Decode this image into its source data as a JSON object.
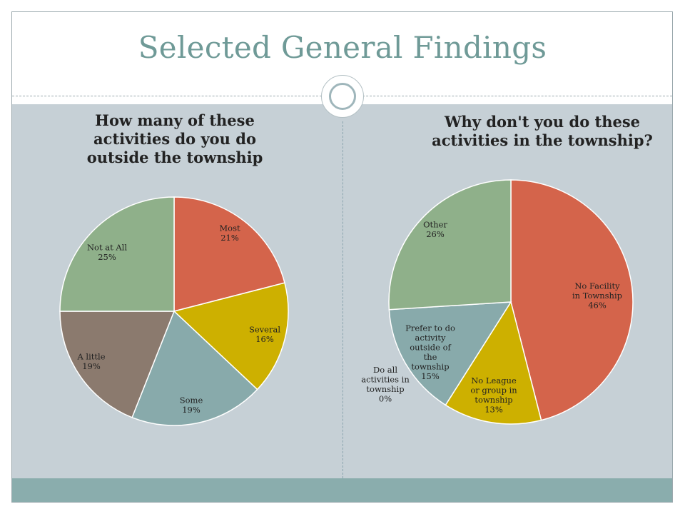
{
  "slide": {
    "title": "Selected General Findings"
  },
  "chart_data": [
    {
      "type": "pie",
      "title": "How many of these activities do you do outside the township",
      "slices": [
        {
          "label": "Most",
          "value": 21,
          "value_label": "21%",
          "color": "#d4644b"
        },
        {
          "label": "Several",
          "value": 16,
          "value_label": "16%",
          "color": "#cdb000"
        },
        {
          "label": "Some",
          "value": 19,
          "value_label": "19%",
          "color": "#88aaab"
        },
        {
          "label": "A little",
          "value": 19,
          "value_label": "19%",
          "color": "#8b7a6e"
        },
        {
          "label": "Not at All",
          "value": 25,
          "value_label": "25%",
          "color": "#8fb08a"
        }
      ]
    },
    {
      "type": "pie",
      "title": "Why don't you do these activities in the township?",
      "slices": [
        {
          "label": "No Facility in Township",
          "value": 46,
          "value_label": "46%",
          "color": "#d4644b"
        },
        {
          "label": "No League or group in township",
          "value": 13,
          "value_label": "13%",
          "color": "#cdb000"
        },
        {
          "label": "Prefer to do activity outside of the township",
          "value": 15,
          "value_label": "15%",
          "color": "#88aaab"
        },
        {
          "label": "Do all activities in township",
          "value": 0,
          "value_label": "0%",
          "color": "#8b7a6e"
        },
        {
          "label": "Other",
          "value": 26,
          "value_label": "26%",
          "color": "#8fb08a"
        }
      ]
    }
  ]
}
